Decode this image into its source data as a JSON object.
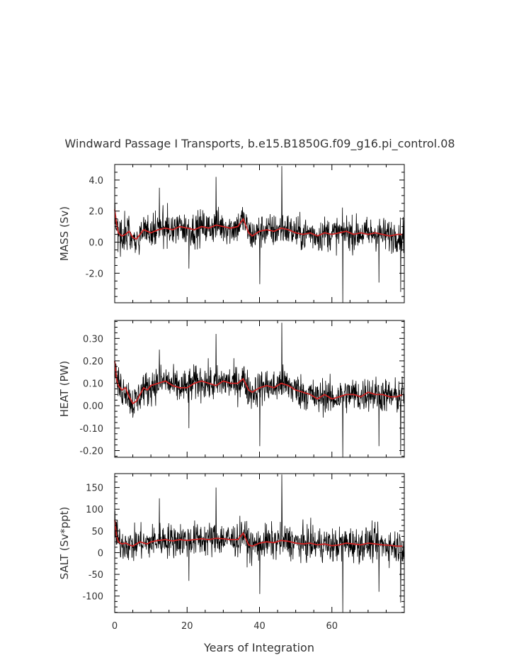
{
  "title": "Windward Passage I Transports, b.e15.B1850G.f09_g16.pi_control.08",
  "xlabel": "Years of Integration",
  "colors": {
    "raw": "#000000",
    "smooth": "#cc2222",
    "axis": "#000000",
    "text": "#333333"
  },
  "chart_data": [
    {
      "type": "line",
      "ylabel": "MASS (Sv)",
      "xlim": [
        0,
        80
      ],
      "ylim": [
        -3.9,
        5.0
      ],
      "yticks": [
        -2.0,
        0.0,
        2.0,
        4.0
      ],
      "ytick_labels": [
        "-2.0",
        "0.0",
        "2.0",
        "4.0"
      ],
      "xticks": [
        0,
        20,
        40,
        60
      ],
      "xtick_labels": [],
      "base": 0.6,
      "noise_sd": 0.55,
      "spikes": [
        [
          28,
          4.2
        ],
        [
          46.2,
          4.9
        ],
        [
          40.1,
          -2.7
        ],
        [
          63,
          -3.9
        ],
        [
          20.5,
          -1.7
        ],
        [
          73,
          -2.6
        ],
        [
          79,
          -3.2
        ],
        [
          12.3,
          3.5
        ]
      ],
      "series": [
        {
          "values": [
            [
              0,
              2.1
            ],
            [
              0.5,
              1.2
            ],
            [
              1,
              0.6
            ],
            [
              2,
              0.4
            ],
            [
              3,
              0.5
            ],
            [
              4,
              0.7
            ],
            [
              5,
              0.3
            ],
            [
              6,
              0.2
            ],
            [
              7,
              0.5
            ],
            [
              8,
              0.8
            ],
            [
              9,
              0.7
            ],
            [
              10,
              0.6
            ],
            [
              12,
              0.8
            ],
            [
              14,
              0.9
            ],
            [
              16,
              0.8
            ],
            [
              18,
              1.0
            ],
            [
              20,
              0.9
            ],
            [
              22,
              0.8
            ],
            [
              24,
              1.0
            ],
            [
              26,
              0.9
            ],
            [
              28,
              1.1
            ],
            [
              30,
              1.0
            ],
            [
              32,
              0.9
            ],
            [
              34,
              1.0
            ],
            [
              35.5,
              1.5
            ],
            [
              37,
              0.6
            ],
            [
              38,
              0.4
            ],
            [
              40,
              0.7
            ],
            [
              42,
              0.8
            ],
            [
              44,
              0.7
            ],
            [
              46,
              0.9
            ],
            [
              48,
              0.8
            ],
            [
              50,
              0.6
            ],
            [
              52,
              0.5
            ],
            [
              54,
              0.6
            ],
            [
              56,
              0.4
            ],
            [
              58,
              0.6
            ],
            [
              60,
              0.5
            ],
            [
              62,
              0.6
            ],
            [
              64,
              0.7
            ],
            [
              66,
              0.5
            ],
            [
              68,
              0.6
            ],
            [
              70,
              0.5
            ],
            [
              72,
              0.6
            ],
            [
              74,
              0.5
            ],
            [
              76,
              0.4
            ],
            [
              78,
              0.5
            ],
            [
              79.5,
              0.5
            ]
          ]
        }
      ]
    },
    {
      "type": "line",
      "ylabel": "HEAT (PW)",
      "xlim": [
        0,
        80
      ],
      "ylim": [
        -0.23,
        0.38
      ],
      "yticks": [
        -0.2,
        -0.1,
        0.0,
        0.1,
        0.2,
        0.3
      ],
      "ytick_labels": [
        "-0.20",
        "-0.10",
        "0.00",
        "0.10",
        "0.20",
        "0.30"
      ],
      "xticks": [
        0,
        20,
        40,
        60
      ],
      "xtick_labels": [],
      "base": 0.07,
      "noise_sd": 0.04,
      "spikes": [
        [
          28,
          0.32
        ],
        [
          46.2,
          0.37
        ],
        [
          40.1,
          -0.18
        ],
        [
          63,
          -0.23
        ],
        [
          20.5,
          -0.1
        ],
        [
          73,
          -0.18
        ],
        [
          79,
          -0.22
        ],
        [
          12.3,
          0.25
        ]
      ],
      "series": [
        {
          "values": [
            [
              0,
              0.2
            ],
            [
              0.5,
              0.12
            ],
            [
              1,
              0.09
            ],
            [
              2,
              0.07
            ],
            [
              3,
              0.08
            ],
            [
              4,
              0.04
            ],
            [
              5,
              0.01
            ],
            [
              6,
              0.02
            ],
            [
              7,
              0.05
            ],
            [
              8,
              0.08
            ],
            [
              9,
              0.07
            ],
            [
              10,
              0.09
            ],
            [
              12,
              0.1
            ],
            [
              14,
              0.11
            ],
            [
              16,
              0.09
            ],
            [
              18,
              0.08
            ],
            [
              20,
              0.08
            ],
            [
              22,
              0.1
            ],
            [
              24,
              0.11
            ],
            [
              26,
              0.1
            ],
            [
              28,
              0.09
            ],
            [
              30,
              0.11
            ],
            [
              32,
              0.1
            ],
            [
              34,
              0.1
            ],
            [
              35.5,
              0.12
            ],
            [
              37,
              0.07
            ],
            [
              38,
              0.06
            ],
            [
              40,
              0.08
            ],
            [
              42,
              0.09
            ],
            [
              44,
              0.08
            ],
            [
              46,
              0.1
            ],
            [
              48,
              0.09
            ],
            [
              50,
              0.07
            ],
            [
              52,
              0.06
            ],
            [
              54,
              0.05
            ],
            [
              56,
              0.03
            ],
            [
              58,
              0.05
            ],
            [
              60,
              0.03
            ],
            [
              62,
              0.04
            ],
            [
              64,
              0.05
            ],
            [
              66,
              0.05
            ],
            [
              68,
              0.04
            ],
            [
              70,
              0.06
            ],
            [
              72,
              0.05
            ],
            [
              74,
              0.05
            ],
            [
              76,
              0.04
            ],
            [
              78,
              0.04
            ],
            [
              79.5,
              0.05
            ]
          ]
        }
      ]
    },
    {
      "type": "line",
      "ylabel": "SALT (Sv*ppt)",
      "xlim": [
        0,
        80
      ],
      "ylim": [
        -138,
        182
      ],
      "yticks": [
        -100,
        -50,
        0,
        50,
        100,
        150
      ],
      "ytick_labels": [
        "-100",
        "-50",
        "0",
        "50",
        "100",
        "150"
      ],
      "xticks": [
        0,
        20,
        40,
        60
      ],
      "xtick_labels": [
        "0",
        "20",
        "40",
        "60"
      ],
      "base": 25,
      "noise_sd": 20,
      "spikes": [
        [
          28,
          150
        ],
        [
          46.2,
          180
        ],
        [
          40.1,
          -95
        ],
        [
          63,
          -138
        ],
        [
          20.5,
          -65
        ],
        [
          73,
          -90
        ],
        [
          79,
          -115
        ],
        [
          12.3,
          125
        ]
      ],
      "series": [
        {
          "values": [
            [
              0,
              75
            ],
            [
              0.5,
              40
            ],
            [
              1,
              25
            ],
            [
              2,
              20
            ],
            [
              3,
              22
            ],
            [
              4,
              18
            ],
            [
              5,
              15
            ],
            [
              6,
              20
            ],
            [
              7,
              25
            ],
            [
              8,
              22
            ],
            [
              9,
              20
            ],
            [
              10,
              25
            ],
            [
              12,
              28
            ],
            [
              14,
              30
            ],
            [
              16,
              27
            ],
            [
              18,
              30
            ],
            [
              20,
              28
            ],
            [
              22,
              30
            ],
            [
              24,
              32
            ],
            [
              26,
              30
            ],
            [
              28,
              33
            ],
            [
              30,
              32
            ],
            [
              32,
              30
            ],
            [
              34,
              30
            ],
            [
              35.5,
              45
            ],
            [
              37,
              18
            ],
            [
              38,
              15
            ],
            [
              40,
              22
            ],
            [
              42,
              25
            ],
            [
              44,
              23
            ],
            [
              46,
              28
            ],
            [
              48,
              26
            ],
            [
              50,
              22
            ],
            [
              52,
              20
            ],
            [
              54,
              22
            ],
            [
              56,
              18
            ],
            [
              58,
              20
            ],
            [
              60,
              16
            ],
            [
              62,
              18
            ],
            [
              64,
              22
            ],
            [
              66,
              20
            ],
            [
              68,
              18
            ],
            [
              70,
              22
            ],
            [
              72,
              20
            ],
            [
              74,
              18
            ],
            [
              76,
              17
            ],
            [
              78,
              15
            ],
            [
              79.5,
              15
            ]
          ]
        }
      ]
    }
  ]
}
